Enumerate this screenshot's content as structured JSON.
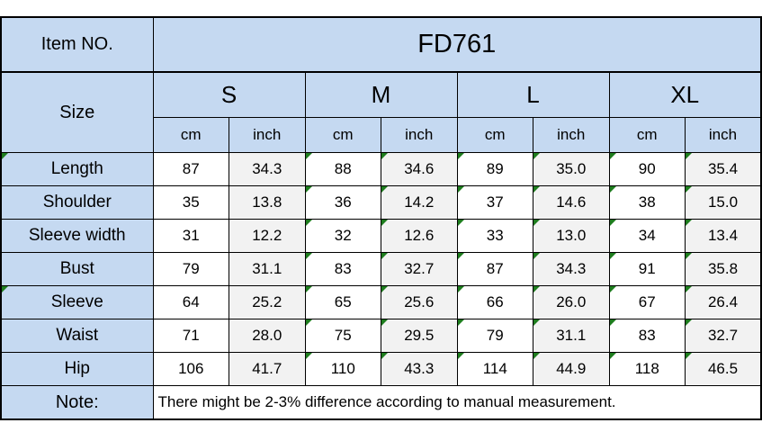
{
  "colors": {
    "header_fill": "#C5D9F1",
    "cm_column_fill": "#FFFFFF",
    "inch_column_fill": "#F2F2F2",
    "border": "#000000",
    "corner_flag_green": "#1E7D1E"
  },
  "chart_data": {
    "type": "table",
    "item_no": {
      "label": "Item NO.",
      "value": "FD761"
    },
    "size_label": "Size",
    "sizes": [
      "S",
      "M",
      "L",
      "XL"
    ],
    "unit_row": [
      "cm",
      "inch",
      "cm",
      "inch",
      "cm",
      "inch",
      "cm",
      "inch"
    ],
    "rows": [
      {
        "label": "Length",
        "values": [
          "87",
          "34.3",
          "88",
          "34.6",
          "89",
          "35.0",
          "90",
          "35.4"
        ]
      },
      {
        "label": "Shoulder",
        "values": [
          "35",
          "13.8",
          "36",
          "14.2",
          "37",
          "14.6",
          "38",
          "15.0"
        ]
      },
      {
        "label": "Sleeve width",
        "values": [
          "31",
          "12.2",
          "32",
          "12.6",
          "33",
          "13.0",
          "34",
          "13.4"
        ]
      },
      {
        "label": "Bust",
        "values": [
          "79",
          "31.1",
          "83",
          "32.7",
          "87",
          "34.3",
          "91",
          "35.8"
        ]
      },
      {
        "label": "Sleeve",
        "values": [
          "64",
          "25.2",
          "65",
          "25.6",
          "66",
          "26.0",
          "67",
          "26.4"
        ]
      },
      {
        "label": "Waist",
        "values": [
          "71",
          "28.0",
          "75",
          "29.5",
          "79",
          "31.1",
          "83",
          "32.7"
        ]
      },
      {
        "label": "Hip",
        "values": [
          "106",
          "41.7",
          "110",
          "43.3",
          "114",
          "44.9",
          "118",
          "46.5"
        ]
      }
    ],
    "note": {
      "label": "Note:",
      "text": "There might be 2-3% difference according to manual measurement."
    }
  }
}
